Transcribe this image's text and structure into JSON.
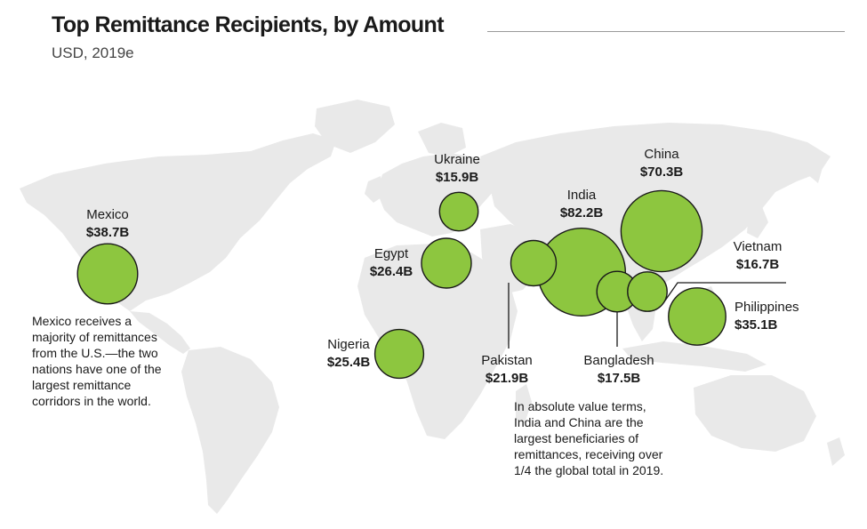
{
  "header": {
    "title": "Top Remittance Recipients, by Amount",
    "subtitle": "USD, 2019e"
  },
  "colors": {
    "bubble_fill": "#8dc63f",
    "bubble_stroke": "#1a1a1a",
    "land": "#e9e9e9",
    "leader_line": "#1a1a1a"
  },
  "chart_data": {
    "type": "bubble-map",
    "unit": "USD billions",
    "series": [
      {
        "country": "Mexico",
        "label": "$38.7B",
        "value": 38.7
      },
      {
        "country": "Ukraine",
        "label": "$15.9B",
        "value": 15.9
      },
      {
        "country": "Egypt",
        "label": "$26.4B",
        "value": 26.4
      },
      {
        "country": "Nigeria",
        "label": "$25.4B",
        "value": 25.4
      },
      {
        "country": "India",
        "label": "$82.2B",
        "value": 82.2
      },
      {
        "country": "China",
        "label": "$70.3B",
        "value": 70.3
      },
      {
        "country": "Vietnam",
        "label": "$16.7B",
        "value": 16.7
      },
      {
        "country": "Philippines",
        "label": "$35.1B",
        "value": 35.1
      },
      {
        "country": "Pakistan",
        "label": "$21.9B",
        "value": 21.9
      },
      {
        "country": "Bangladesh",
        "label": "$17.5B",
        "value": 17.5
      }
    ]
  },
  "notes": {
    "mexico": [
      "Mexico receives a",
      "majority of remittances",
      "from the U.S.—the two",
      "nations have one of the",
      "largest remittance",
      "corridors in the world."
    ],
    "asia": [
      "In absolute value terms,",
      "India and China are the",
      "largest beneficiaries of",
      "remittances, receiving over",
      "1/4 the global total in 2019."
    ]
  }
}
